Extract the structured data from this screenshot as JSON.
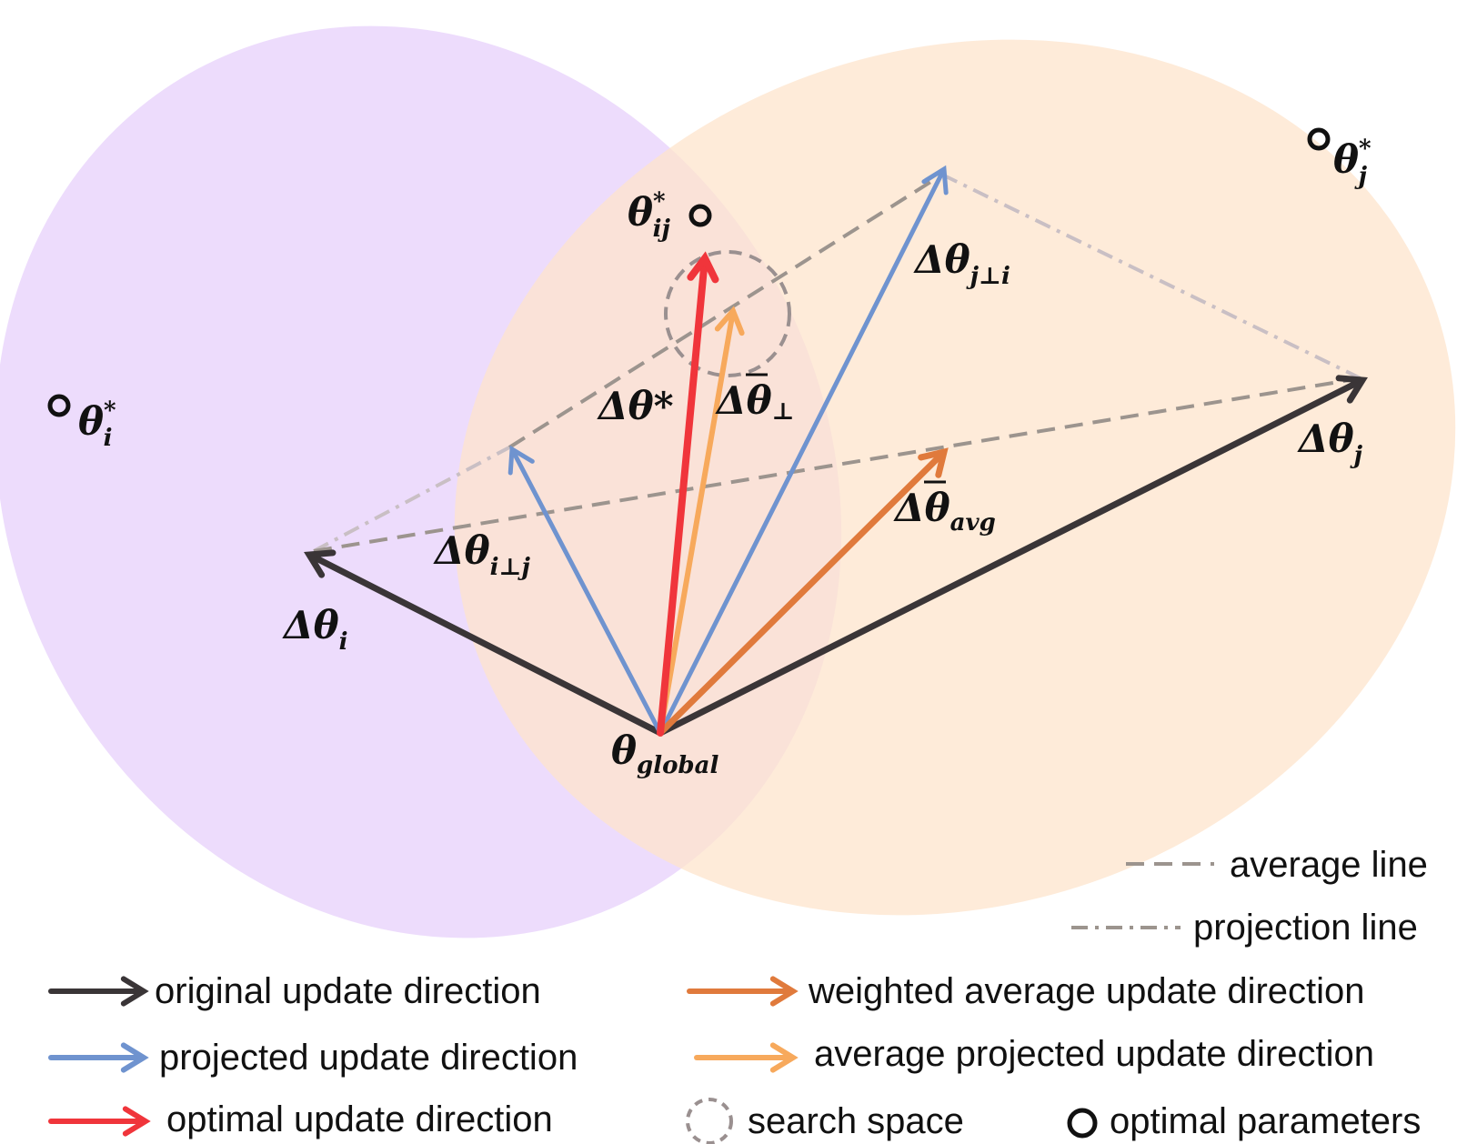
{
  "colors": {
    "region_i": "#ead6fb",
    "region_j": "#fde4cc",
    "original": "#3a3537",
    "projected": "#6f93cf",
    "optimal": "#f0353b",
    "weighted_average": "#e07a3c",
    "average_projected": "#f7a95c",
    "average_line": "#9c948e",
    "projection_line": "#c9bfc4",
    "search_space": "#9a9090",
    "optimal_parameters": "#111111"
  },
  "labels": {
    "delta_theta_i": {
      "main": "Δθ",
      "sub": "i"
    },
    "delta_theta_j": {
      "main": "Δθ",
      "sub": "j"
    },
    "delta_theta_i_perp_j": {
      "main": "Δθ",
      "sub": "i⊥j"
    },
    "delta_theta_j_perp_i": {
      "main": "Δθ",
      "sub": "j⊥i"
    },
    "delta_theta_star": {
      "main": "Δθ*"
    },
    "delta_theta_bar_perp": {
      "main": "Δθ",
      "sub": "⊥"
    },
    "delta_theta_bar_avg": {
      "main": "Δθ",
      "sub": "avg"
    },
    "theta_global": {
      "main": "θ",
      "sub": "global"
    },
    "theta_i_star": {
      "main": "θ",
      "sup": "*",
      "sub": "i"
    },
    "theta_j_star": {
      "main": "θ",
      "sup": "*",
      "sub": "j"
    },
    "theta_ij_star": {
      "main": "θ",
      "sup": "*",
      "sub": "ij"
    }
  },
  "legend": {
    "average_line": "average line",
    "projection_line": "projection line",
    "original": "original update direction",
    "weighted_average": "weighted average update direction",
    "projected": "projected update direction",
    "average_projected": "average projected update direction",
    "optimal": "optimal update direction",
    "search_space": "search space",
    "optimal_parameters": "optimal parameters"
  }
}
